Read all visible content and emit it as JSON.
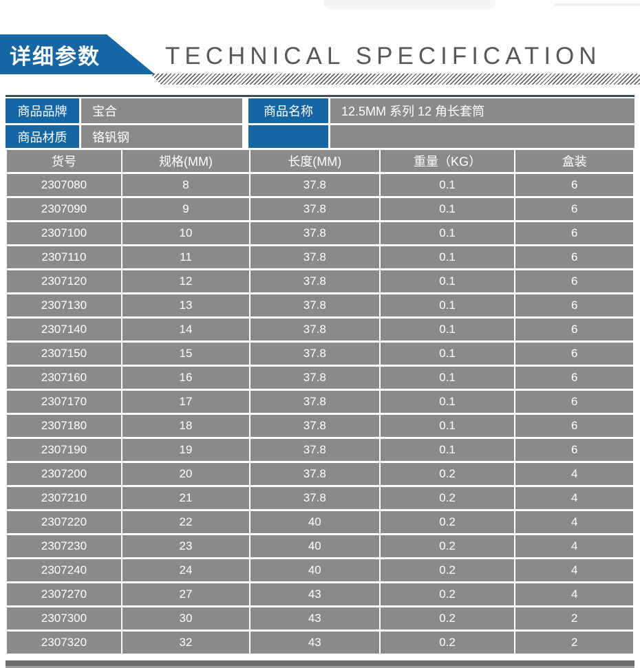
{
  "header": {
    "title_cn": "详细参数",
    "title_en": "TECHNICAL SPECIFICATION"
  },
  "product_info": {
    "rows": [
      {
        "label": "商品品牌",
        "value": "宝合",
        "label2": "商品名称",
        "value2": "12.5MM 系列 12 角长套筒"
      },
      {
        "label": "商品材质",
        "value": "铬钒钢",
        "label2": "",
        "value2": ""
      }
    ]
  },
  "spec_table": {
    "headers": [
      "货号",
      "规格(MM)",
      "长度(MM)",
      "重量（KG）",
      "盒装"
    ],
    "rows": [
      [
        "2307080",
        "8",
        "37.8",
        "0.1",
        "6"
      ],
      [
        "2307090",
        "9",
        "37.8",
        "0.1",
        "6"
      ],
      [
        "2307100",
        "10",
        "37.8",
        "0.1",
        "6"
      ],
      [
        "2307110",
        "11",
        "37.8",
        "0.1",
        "6"
      ],
      [
        "2307120",
        "12",
        "37.8",
        "0.1",
        "6"
      ],
      [
        "2307130",
        "13",
        "37.8",
        "0.1",
        "6"
      ],
      [
        "2307140",
        "14",
        "37.8",
        "0.1",
        "6"
      ],
      [
        "2307150",
        "15",
        "37.8",
        "0.1",
        "6"
      ],
      [
        "2307160",
        "16",
        "37.8",
        "0.1",
        "6"
      ],
      [
        "2307170",
        "17",
        "37.8",
        "0.1",
        "6"
      ],
      [
        "2307180",
        "18",
        "37.8",
        "0.1",
        "6"
      ],
      [
        "2307190",
        "19",
        "37.8",
        "0.1",
        "6"
      ],
      [
        "2307200",
        "20",
        "37.8",
        "0.2",
        "4"
      ],
      [
        "2307210",
        "21",
        "37.8",
        "0.2",
        "4"
      ],
      [
        "2307220",
        "22",
        "40",
        "0.2",
        "4"
      ],
      [
        "2307230",
        "23",
        "40",
        "0.2",
        "4"
      ],
      [
        "2307240",
        "24",
        "40",
        "0.2",
        "4"
      ],
      [
        "2307270",
        "27",
        "43",
        "0.2",
        "4"
      ],
      [
        "2307300",
        "30",
        "43",
        "0.2",
        "2"
      ],
      [
        "2307320",
        "32",
        "43",
        "0.2",
        "2"
      ]
    ]
  },
  "colors": {
    "accent_blue": "#1666a4",
    "cell_gray": "#8a8a8a",
    "top_rule": "#3e4956",
    "title_gray": "#57585c",
    "bottom_bar": "#6d6d6d",
    "text_white": "#ffffff"
  }
}
